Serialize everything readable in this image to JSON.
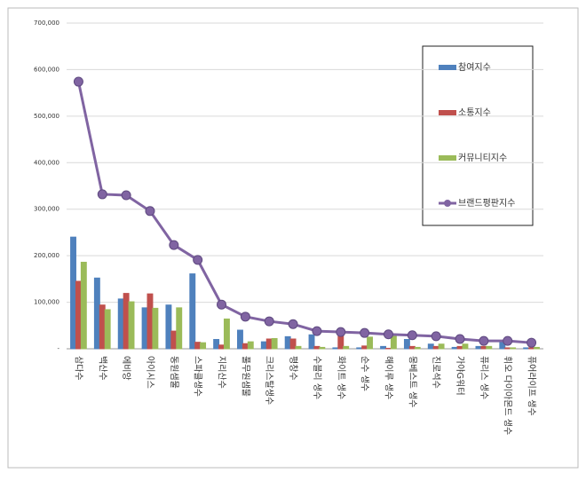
{
  "chart_data": {
    "type": "bar",
    "categories": [
      "삼다수",
      "백산수",
      "에비앙",
      "아이시스",
      "동원샘물",
      "스파클생수",
      "지리산수",
      "풀무원샘물",
      "크리스탈생수",
      "평창수",
      "수블리 생수",
      "화이트 생수",
      "순수 생수",
      "해이루 생수",
      "몽베스트 생수",
      "진로석수",
      "가야G워터",
      "퓨리스 생수",
      "휘오 다이아몬드 생수",
      "퓨어라이프 생수"
    ],
    "series": [
      {
        "name": "참여지수",
        "type": "bar",
        "color": "#4f81bd",
        "values": [
          240000,
          152000,
          107000,
          88000,
          94000,
          161000,
          20000,
          40000,
          15000,
          26000,
          30000,
          2000,
          2000,
          5000,
          20000,
          10000,
          3000,
          5000,
          15000,
          2000
        ]
      },
      {
        "name": "소통지수",
        "type": "bar",
        "color": "#c0504d",
        "values": [
          145000,
          94000,
          119000,
          118000,
          38000,
          14000,
          8000,
          11000,
          21000,
          21000,
          5000,
          30000,
          6000,
          1000,
          5000,
          5000,
          5000,
          5000,
          2000,
          2000
        ]
      },
      {
        "name": "커뮤니티지수",
        "type": "bar",
        "color": "#9bbb59",
        "values": [
          186000,
          84000,
          101000,
          87000,
          88000,
          13000,
          64000,
          15000,
          22000,
          5000,
          3000,
          5000,
          25000,
          27000,
          3000,
          10000,
          10000,
          5000,
          2000,
          3000
        ]
      },
      {
        "name": "브랜드평판지수",
        "type": "line",
        "color": "#8064a2",
        "values": [
          574000,
          332000,
          330000,
          296000,
          223000,
          191000,
          95000,
          69000,
          59000,
          53000,
          38000,
          36000,
          34000,
          31000,
          29000,
          27000,
          21000,
          17000,
          17000,
          13000
        ]
      }
    ],
    "ylim": [
      0,
      700000
    ],
    "yticks": [
      {
        "value": 0,
        "label": "-"
      },
      {
        "value": 100000,
        "label": "100,000"
      },
      {
        "value": 200000,
        "label": "200,000"
      },
      {
        "value": 300000,
        "label": "300,000"
      },
      {
        "value": 400000,
        "label": "400,000"
      },
      {
        "value": 500000,
        "label": "500,000"
      },
      {
        "value": 600000,
        "label": "600,000"
      },
      {
        "value": 700000,
        "label": "700,000"
      }
    ],
    "grid": true,
    "legend": "right"
  }
}
